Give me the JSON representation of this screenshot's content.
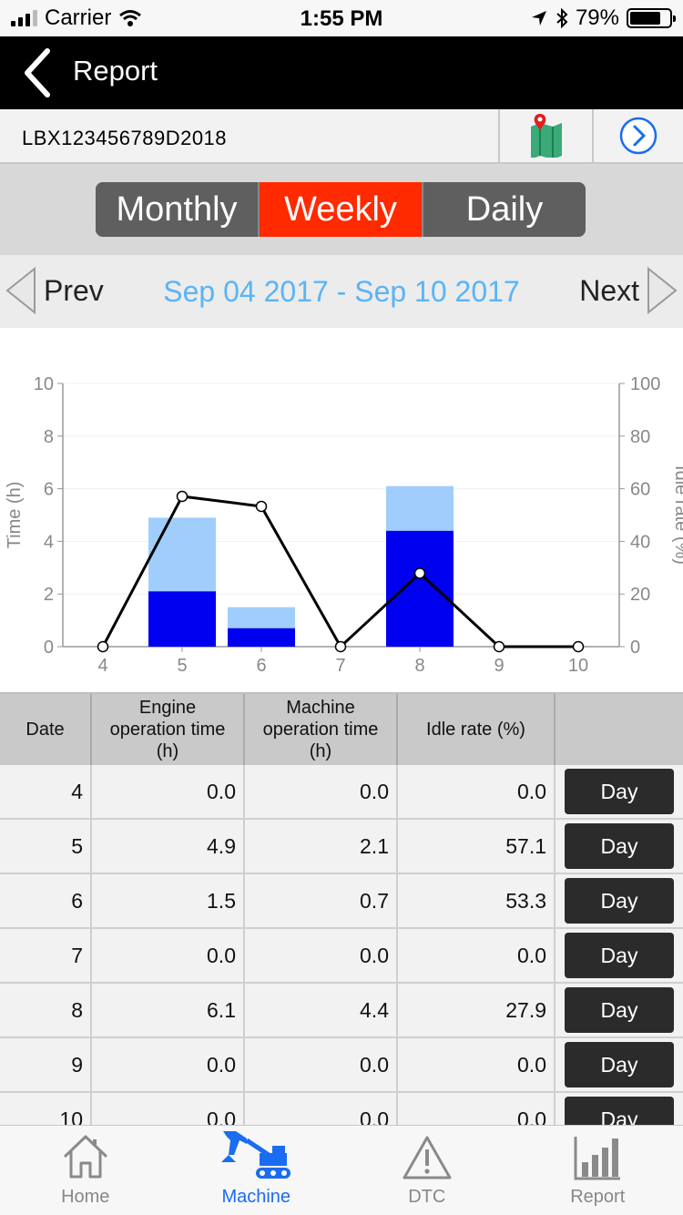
{
  "status_bar": {
    "carrier": "Carrier",
    "time": "1:55 PM",
    "battery": "79%",
    "battery_level": 0.79
  },
  "nav": {
    "title": "Report",
    "back_icon": "chevron-left-icon"
  },
  "machine": {
    "id": "LBX123456789D2018",
    "map_icon": "map-pin-icon",
    "next_icon": "circle-chevron-right-icon"
  },
  "period_tabs": [
    {
      "label": "Monthly",
      "active": false
    },
    {
      "label": "Weekly",
      "active": true
    },
    {
      "label": "Daily",
      "active": false
    }
  ],
  "date_nav": {
    "prev": "Prev",
    "next": "Next",
    "range": "Sep 04 2017 - Sep 10 2017"
  },
  "chart_data": {
    "type": "bar",
    "categories": [
      "4",
      "5",
      "6",
      "7",
      "8",
      "9",
      "10"
    ],
    "series": [
      {
        "values": [
          0.0,
          4.9,
          1.5,
          0.0,
          6.1,
          0.0,
          0.0
        ],
        "color": "#a0cdfc"
      },
      {
        "values": [
          0.0,
          2.1,
          0.7,
          0.0,
          4.4,
          0.0,
          0.0
        ],
        "color": "#0000f0"
      },
      {
        "type": "line",
        "axis": "right",
        "values": [
          0.0,
          57.1,
          53.3,
          0.0,
          27.9,
          0.0,
          0.0
        ],
        "color": "#000000"
      }
    ],
    "ylabel": "Time (h)",
    "y2label": "Idle rate (%)",
    "ylim": [
      0,
      10
    ],
    "y2lim": [
      0,
      100
    ],
    "yticks": [
      "0",
      "2",
      "4",
      "6",
      "8",
      "10"
    ],
    "y2ticks": [
      "0",
      "20",
      "40",
      "60",
      "80",
      "100"
    ]
  },
  "table": {
    "headers": {
      "date": "Date",
      "engine": [
        "Engine",
        "operation time",
        "(h)"
      ],
      "machine": [
        "Machine",
        "operation time",
        "(h)"
      ],
      "idle": "Idle rate (%)"
    },
    "day_label": "Day",
    "rows": [
      {
        "date": "4",
        "engine": "0.0",
        "machine": "0.0",
        "idle": "0.0"
      },
      {
        "date": "5",
        "engine": "4.9",
        "machine": "2.1",
        "idle": "57.1"
      },
      {
        "date": "6",
        "engine": "1.5",
        "machine": "0.7",
        "idle": "53.3"
      },
      {
        "date": "7",
        "engine": "0.0",
        "machine": "0.0",
        "idle": "0.0"
      },
      {
        "date": "8",
        "engine": "6.1",
        "machine": "4.4",
        "idle": "27.9"
      },
      {
        "date": "9",
        "engine": "0.0",
        "machine": "0.0",
        "idle": "0.0"
      },
      {
        "date": "10",
        "engine": "0.0",
        "machine": "0.0",
        "idle": "0.0"
      }
    ]
  },
  "tabbar": [
    {
      "label": "Home",
      "icon": "home-icon",
      "active": false
    },
    {
      "label": "Machine",
      "icon": "excavator-icon",
      "active": true
    },
    {
      "label": "DTC",
      "icon": "warning-icon",
      "active": false
    },
    {
      "label": "Report",
      "icon": "bar-chart-icon",
      "active": false
    }
  ],
  "colors": {
    "accent": "#ff2a00",
    "range_text": "#5ab4f5",
    "tab_active": "#1a6cf0"
  }
}
